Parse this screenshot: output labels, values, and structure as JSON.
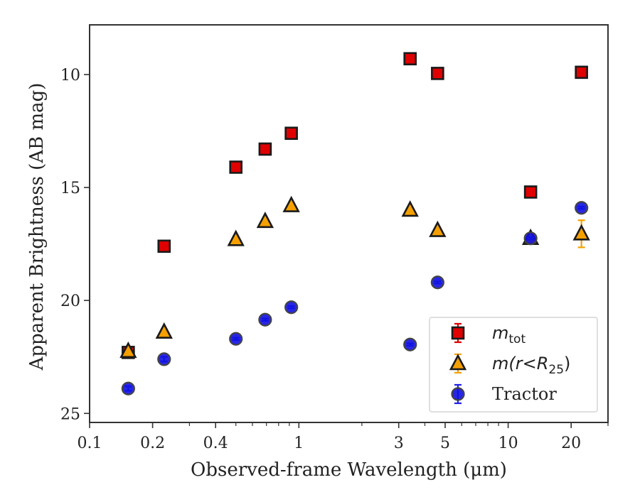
{
  "chart_data": {
    "type": "scatter",
    "xscale": "log",
    "xlim": [
      0.1,
      30
    ],
    "ylim": [
      25.4,
      7.8
    ],
    "y_inverted": true,
    "xlabel": "Observed-frame Wavelength (μm)",
    "ylabel": "Apparent Brightness (AB mag)",
    "x_ticks": [
      {
        "value": 0.1,
        "label": "0.1"
      },
      {
        "value": 0.2,
        "label": "0.2"
      },
      {
        "value": 0.4,
        "label": "0.4"
      },
      {
        "value": 1,
        "label": "1"
      },
      {
        "value": 3,
        "label": "3"
      },
      {
        "value": 5,
        "label": "5"
      },
      {
        "value": 10,
        "label": "10"
      },
      {
        "value": 20,
        "label": "20"
      }
    ],
    "y_ticks": [
      {
        "value": 10,
        "label": "10"
      },
      {
        "value": 15,
        "label": "15"
      },
      {
        "value": 20,
        "label": "20"
      },
      {
        "value": 25,
        "label": "25"
      }
    ],
    "grid": false,
    "legend_position": "lower-right",
    "series": [
      {
        "name": "m_tot",
        "legend_main": "m",
        "legend_sub": "tot",
        "marker": "square",
        "fill": "#e00000",
        "edge": "#1a1a1a",
        "errcolor": "#dd0000",
        "points": [
          {
            "x": 0.153,
            "y": 22.3,
            "err": 0.1
          },
          {
            "x": 0.227,
            "y": 17.6,
            "err": 0.1
          },
          {
            "x": 0.5,
            "y": 14.1,
            "err": 0.05
          },
          {
            "x": 0.69,
            "y": 13.3,
            "err": 0.05
          },
          {
            "x": 0.92,
            "y": 12.6,
            "err": 0.05
          },
          {
            "x": 3.4,
            "y": 9.3,
            "err": 0.05
          },
          {
            "x": 4.6,
            "y": 9.95,
            "err": 0.05
          },
          {
            "x": 12.8,
            "y": 15.2,
            "err": 0.05
          },
          {
            "x": 22.4,
            "y": 9.9,
            "err": 0.05
          }
        ]
      },
      {
        "name": "m(r<R25)",
        "legend_main": "m(r<R",
        "legend_sub": "25",
        "legend_tail": ")",
        "marker": "triangle",
        "fill": "#f5a000",
        "edge": "#1a1a1a",
        "errcolor": "#f5a000",
        "points": [
          {
            "x": 0.153,
            "y": 22.25,
            "err": 0.1
          },
          {
            "x": 0.227,
            "y": 21.4,
            "err": 0.1
          },
          {
            "x": 0.5,
            "y": 17.3,
            "err": 0.05
          },
          {
            "x": 0.69,
            "y": 16.5,
            "err": 0.05
          },
          {
            "x": 0.92,
            "y": 15.8,
            "err": 0.05
          },
          {
            "x": 3.4,
            "y": 16.0,
            "err": 0.05
          },
          {
            "x": 4.6,
            "y": 16.9,
            "err": 0.05
          },
          {
            "x": 12.8,
            "y": 17.25,
            "err": 0.1
          },
          {
            "x": 22.4,
            "y": 17.05,
            "err": 0.6
          }
        ]
      },
      {
        "name": "Tractor",
        "legend_main": "Tractor",
        "marker": "circle",
        "fill": "#1010e0",
        "edge": "#444444",
        "errcolor": "#2020ee",
        "points": [
          {
            "x": 0.153,
            "y": 23.9,
            "err": 0.1
          },
          {
            "x": 0.227,
            "y": 22.6,
            "err": 0.1
          },
          {
            "x": 0.5,
            "y": 21.7,
            "err": 0.05
          },
          {
            "x": 0.69,
            "y": 20.85,
            "err": 0.05
          },
          {
            "x": 0.92,
            "y": 20.3,
            "err": 0.05
          },
          {
            "x": 3.4,
            "y": 21.95,
            "err": 0.05
          },
          {
            "x": 4.6,
            "y": 19.2,
            "err": 0.05
          },
          {
            "x": 12.8,
            "y": 17.25,
            "err": 0.05
          },
          {
            "x": 22.4,
            "y": 15.9,
            "err": 0.05
          }
        ]
      }
    ]
  }
}
